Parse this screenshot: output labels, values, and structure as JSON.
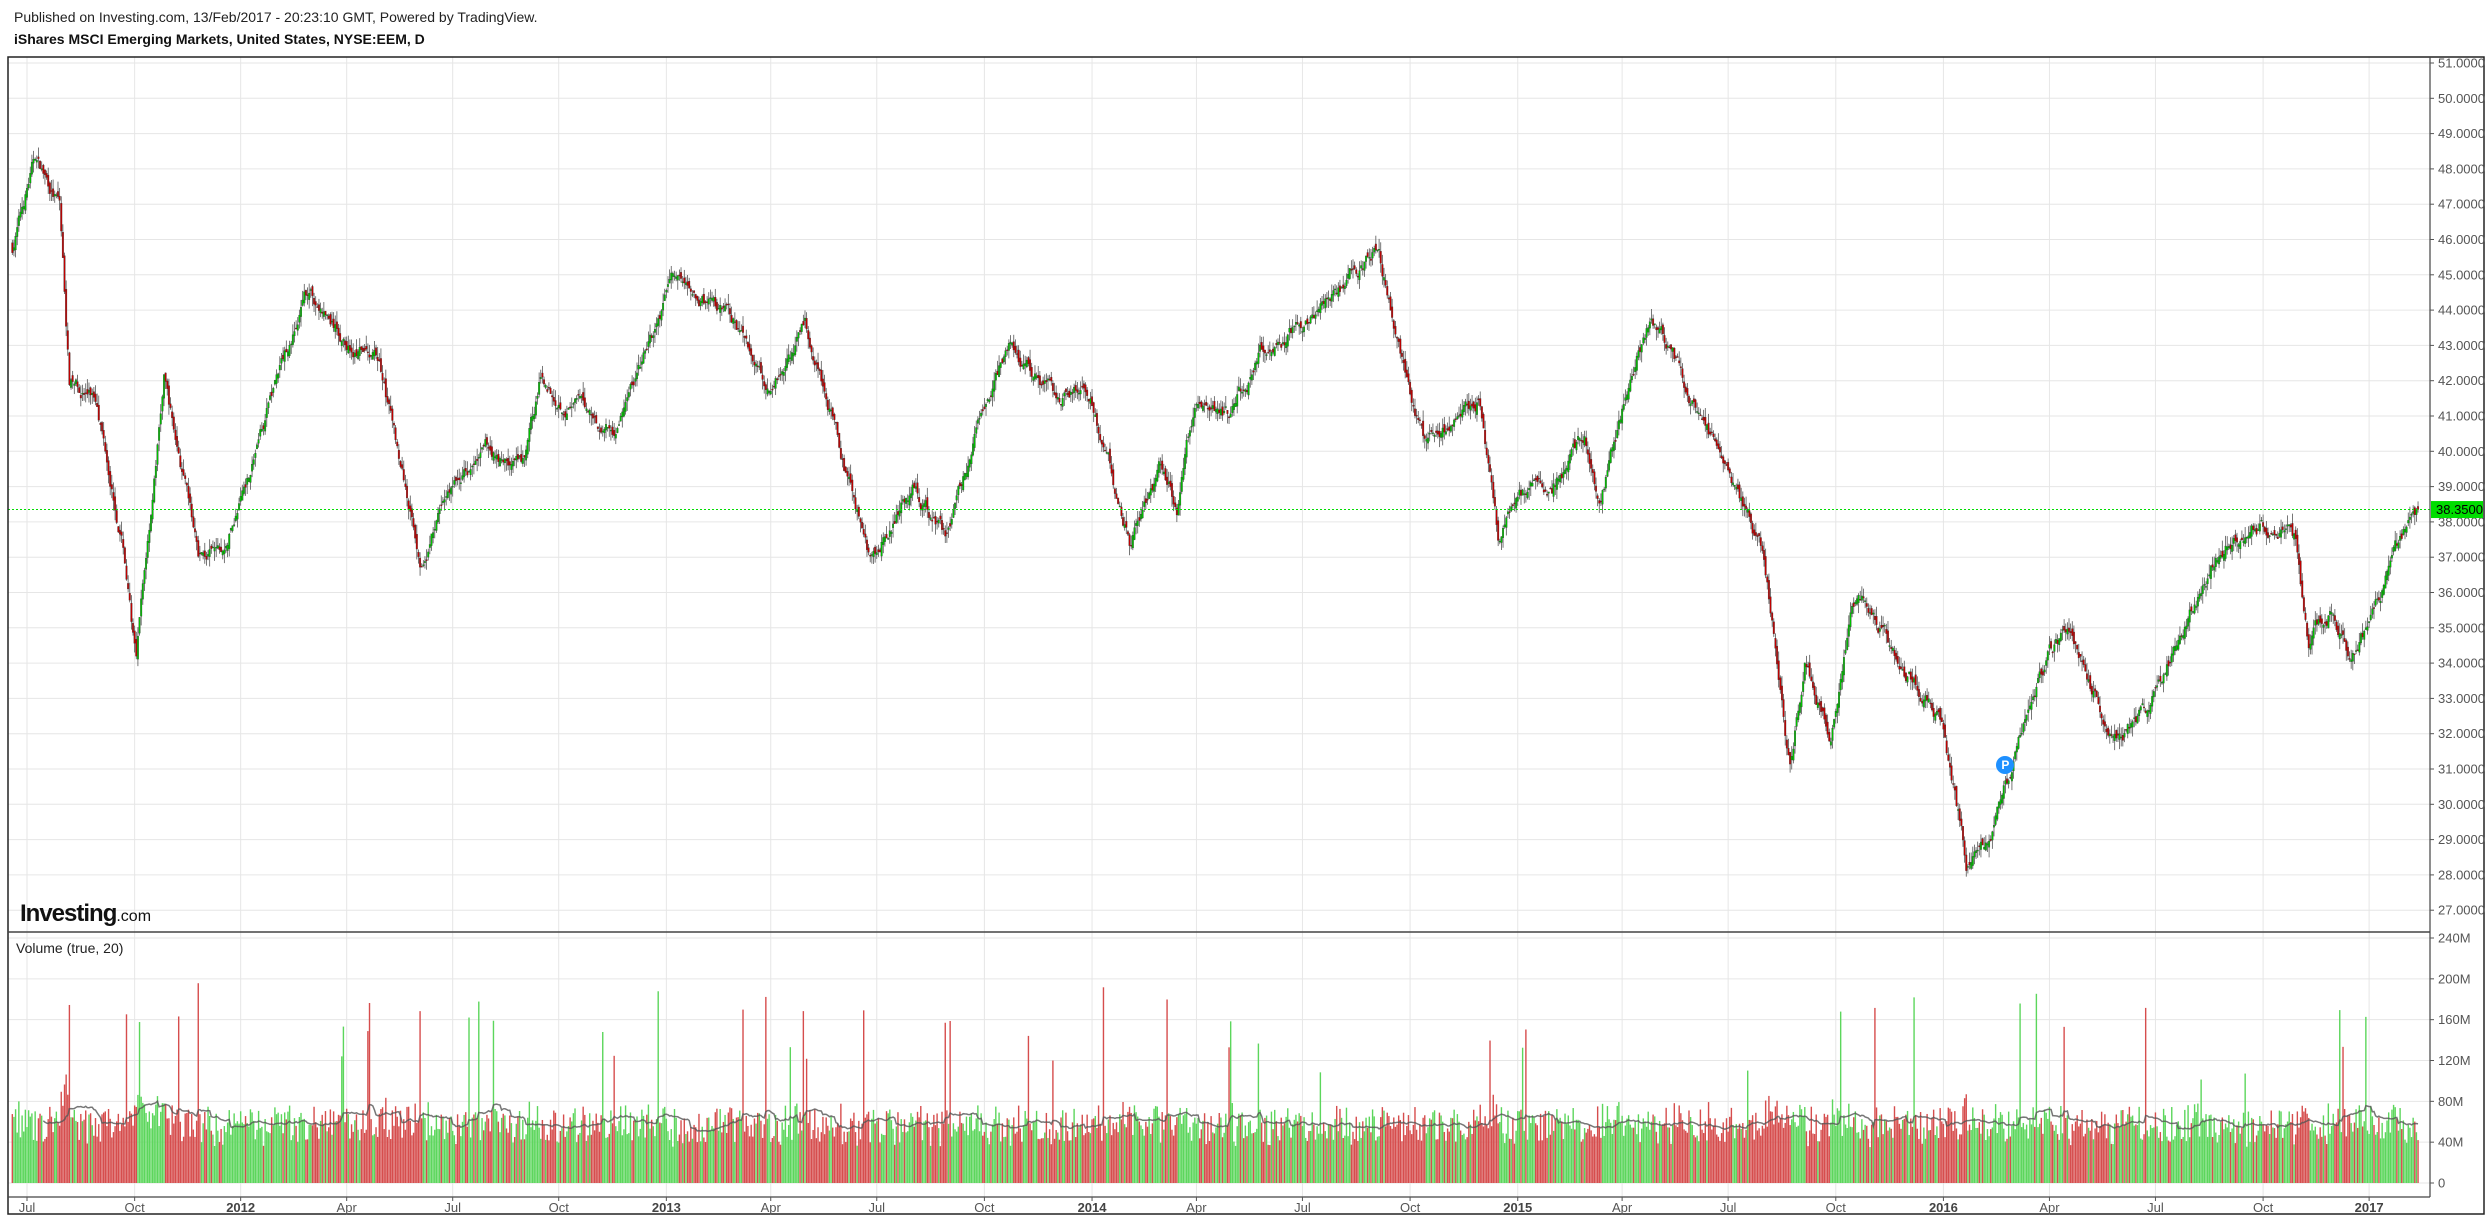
{
  "header": {
    "published": "Published on Investing.com, 13/Feb/2017 - 20:23:10 GMT, Powered by TradingView.",
    "title": "iShares MSCI Emerging Markets, United States, NYSE:EEM, D"
  },
  "logo": {
    "brand": "Investing",
    "suffix": ".com"
  },
  "volume_pane": {
    "label": "Volume (true, 20)"
  },
  "event_marker": {
    "letter": "P",
    "date": "2016-02-24"
  },
  "colors": {
    "up": "#00c000",
    "down": "#c00000",
    "vol_up": "#5cd65c",
    "vol_down": "#d64d4d",
    "ma": "#555555",
    "last_price": "#00dd00",
    "grid": "#e6e6e6"
  },
  "chart_data": {
    "type": "candlestick",
    "symbol": "NYSE:EEM",
    "interval": "D",
    "last_price": 38.35,
    "last_price_label": "38.3500",
    "price_axis": {
      "min": 27,
      "max": 51,
      "ticks": [
        "51.0000",
        "50.0000",
        "49.0000",
        "48.0000",
        "47.0000",
        "46.0000",
        "45.0000",
        "44.0000",
        "43.0000",
        "42.0000",
        "41.0000",
        "40.0000",
        "39.0000",
        "38.0000",
        "37.0000",
        "36.0000",
        "35.0000",
        "34.0000",
        "33.0000",
        "32.0000",
        "31.0000",
        "30.0000",
        "29.0000",
        "28.0000",
        "27.0000"
      ]
    },
    "volume_axis": {
      "min": 0,
      "max": 240,
      "unit": "M",
      "ticks": [
        "240M",
        "200M",
        "160M",
        "120M",
        "80M",
        "40M",
        "0"
      ],
      "ma_period": 20
    },
    "x_labels": [
      {
        "date": "2011-07-01",
        "label": "Jul"
      },
      {
        "date": "2011-10-03",
        "label": "Oct"
      },
      {
        "date": "2012-01-02",
        "label": "2012",
        "year": true
      },
      {
        "date": "2012-04-02",
        "label": "Apr"
      },
      {
        "date": "2012-07-02",
        "label": "Jul"
      },
      {
        "date": "2012-10-01",
        "label": "Oct"
      },
      {
        "date": "2013-01-01",
        "label": "2013",
        "year": true
      },
      {
        "date": "2013-04-01",
        "label": "Apr"
      },
      {
        "date": "2013-07-01",
        "label": "Jul"
      },
      {
        "date": "2013-10-01",
        "label": "Oct"
      },
      {
        "date": "2014-01-01",
        "label": "2014",
        "year": true
      },
      {
        "date": "2014-04-01",
        "label": "Apr"
      },
      {
        "date": "2014-07-01",
        "label": "Jul"
      },
      {
        "date": "2014-10-01",
        "label": "Oct"
      },
      {
        "date": "2015-01-01",
        "label": "2015",
        "year": true
      },
      {
        "date": "2015-04-01",
        "label": "Apr"
      },
      {
        "date": "2015-07-01",
        "label": "Jul"
      },
      {
        "date": "2015-10-01",
        "label": "Oct"
      },
      {
        "date": "2016-01-01",
        "label": "2016",
        "year": true
      },
      {
        "date": "2016-04-01",
        "label": "Apr"
      },
      {
        "date": "2016-07-01",
        "label": "Jul"
      },
      {
        "date": "2016-10-03",
        "label": "Oct"
      },
      {
        "date": "2017-01-02",
        "label": "2017",
        "year": true
      }
    ],
    "start_date": "2011-06-20",
    "end_date": "2017-02-13",
    "price_path": [
      [
        "2011-06-20",
        45.8
      ],
      [
        "2011-07-08",
        48.3
      ],
      [
        "2011-07-29",
        47.0
      ],
      [
        "2011-08-08",
        42.0
      ],
      [
        "2011-08-31",
        41.5
      ],
      [
        "2011-09-22",
        37.5
      ],
      [
        "2011-10-04",
        34.0
      ],
      [
        "2011-10-27",
        42.0
      ],
      [
        "2011-11-25",
        37.0
      ],
      [
        "2011-12-19",
        37.0
      ],
      [
        "2012-01-31",
        42.0
      ],
      [
        "2012-02-29",
        44.5
      ],
      [
        "2012-03-30",
        43.0
      ],
      [
        "2012-04-30",
        42.5
      ],
      [
        "2012-05-31",
        37.5
      ],
      [
        "2012-06-04",
        37.0
      ],
      [
        "2012-06-29",
        39.0
      ],
      [
        "2012-07-31",
        40.0
      ],
      [
        "2012-08-31",
        39.5
      ],
      [
        "2012-09-14",
        42.0
      ],
      [
        "2012-10-31",
        41.0
      ],
      [
        "2012-11-15",
        40.5
      ],
      [
        "2012-12-31",
        44.0
      ],
      [
        "2013-01-04",
        45.0
      ],
      [
        "2013-02-28",
        43.5
      ],
      [
        "2013-03-29",
        42.0
      ],
      [
        "2013-04-30",
        43.5
      ],
      [
        "2013-05-15",
        42.0
      ],
      [
        "2013-06-24",
        37.0
      ],
      [
        "2013-07-31",
        39.0
      ],
      [
        "2013-08-28",
        37.5
      ],
      [
        "2013-09-30",
        41.0
      ],
      [
        "2013-10-22",
        43.0
      ],
      [
        "2013-11-29",
        41.5
      ],
      [
        "2013-12-31",
        41.5
      ],
      [
        "2014-02-03",
        37.5
      ],
      [
        "2014-02-28",
        39.5
      ],
      [
        "2014-03-14",
        38.5
      ],
      [
        "2014-03-31",
        41.5
      ],
      [
        "2014-04-30",
        41.0
      ],
      [
        "2014-05-30",
        43.0
      ],
      [
        "2014-06-30",
        43.5
      ],
      [
        "2014-07-31",
        44.5
      ],
      [
        "2014-09-04",
        45.7
      ],
      [
        "2014-09-30",
        41.5
      ],
      [
        "2014-10-15",
        40.0
      ],
      [
        "2014-11-28",
        41.5
      ],
      [
        "2014-12-16",
        37.5
      ],
      [
        "2014-12-31",
        39.0
      ],
      [
        "2015-01-30",
        39.0
      ],
      [
        "2015-02-27",
        40.5
      ],
      [
        "2015-03-12",
        38.5
      ],
      [
        "2015-04-27",
        44.0
      ],
      [
        "2015-05-29",
        41.5
      ],
      [
        "2015-06-30",
        39.5
      ],
      [
        "2015-07-31",
        37.0
      ],
      [
        "2015-08-24",
        31.0
      ],
      [
        "2015-09-04",
        34.0
      ],
      [
        "2015-09-28",
        32.0
      ],
      [
        "2015-10-15",
        36.0
      ],
      [
        "2015-11-30",
        34.0
      ],
      [
        "2015-12-31",
        32.5
      ],
      [
        "2016-01-21",
        28.3
      ],
      [
        "2016-02-11",
        29.0
      ],
      [
        "2016-03-31",
        34.0
      ],
      [
        "2016-04-20",
        35.0
      ],
      [
        "2016-05-24",
        32.0
      ],
      [
        "2016-06-27",
        32.5
      ],
      [
        "2016-07-29",
        35.5
      ],
      [
        "2016-08-31",
        37.5
      ],
      [
        "2016-09-22",
        38.2
      ],
      [
        "2016-10-31",
        37.5
      ],
      [
        "2016-11-10",
        34.5
      ],
      [
        "2016-11-29",
        35.5
      ],
      [
        "2016-12-15",
        34.2
      ],
      [
        "2016-12-30",
        35.0
      ],
      [
        "2017-01-31",
        37.5
      ],
      [
        "2017-02-13",
        38.35
      ]
    ]
  }
}
